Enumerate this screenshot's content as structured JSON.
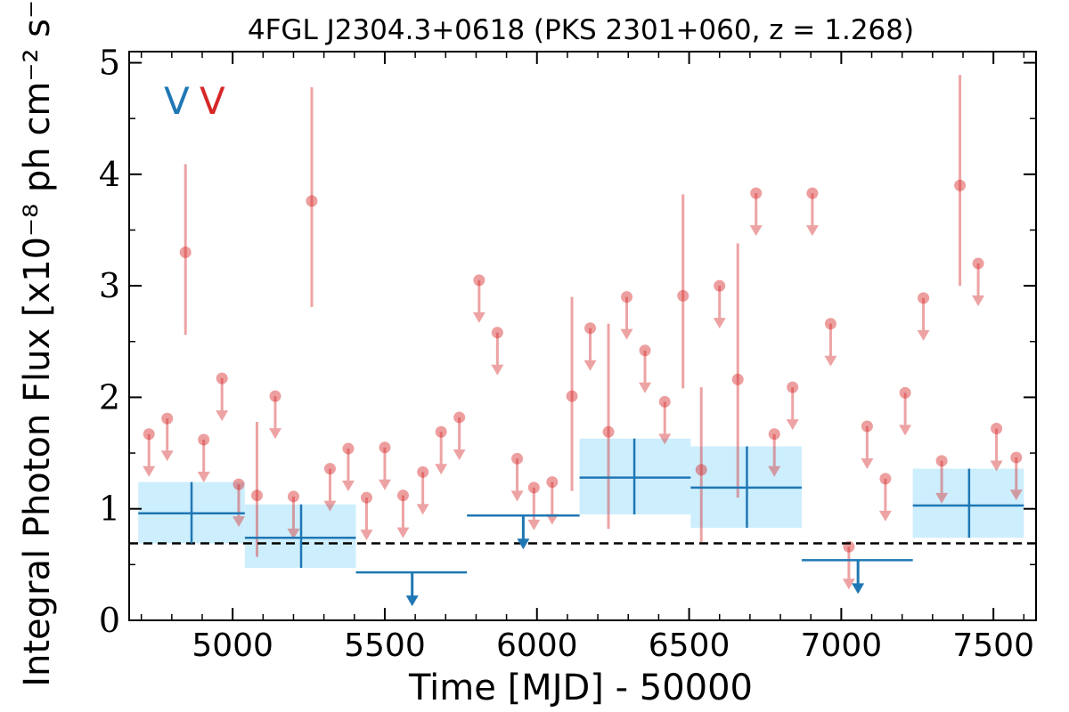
{
  "chart_data": {
    "type": "scatter",
    "title": "4FGL J2304.3+0618 (PKS 2301+060, z = 1.268)",
    "xlabel": "Time [MJD] - 50000",
    "ylabel": "Integral Photon Flux [x10⁻⁸ ph cm⁻² s⁻¹]",
    "xlim": [
      4660,
      7640
    ],
    "ylim": [
      0,
      5.1
    ],
    "x_ticks": [
      "5000",
      "5500",
      "6000",
      "6500",
      "7000",
      "7500"
    ],
    "x_tick_values": [
      5000,
      5500,
      6000,
      6500,
      7000,
      7500
    ],
    "y_ticks": [
      "0",
      "1",
      "2",
      "3",
      "4",
      "5"
    ],
    "y_tick_values": [
      0,
      1,
      2,
      3,
      4,
      5
    ],
    "grid": false,
    "legend_markers": [
      "V",
      "V"
    ],
    "colors": {
      "long_bins": "#1f77b4",
      "short_bins": "#d62728",
      "band_fill": "#cdeefd",
      "baseline": "#000000"
    },
    "baseline": 0.69,
    "series": [
      {
        "color": "#1f77b4",
        "bins": [
          {
            "x": 4865,
            "x_start": 4690,
            "x_end": 5040,
            "y": 0.96,
            "y_low": 0.69,
            "y_high": 1.24,
            "upper_limit": false
          },
          {
            "x": 5225,
            "x_start": 5040,
            "x_end": 5405,
            "y": 0.74,
            "y_low": 0.47,
            "y_high": 1.04,
            "upper_limit": false
          },
          {
            "x": 5590,
            "x_start": 5405,
            "x_end": 5770,
            "y": 0.43,
            "upper_limit": true
          },
          {
            "x": 5955,
            "x_start": 5770,
            "x_end": 6140,
            "y": 0.94,
            "upper_limit": true
          },
          {
            "x": 6320,
            "x_start": 6140,
            "x_end": 6505,
            "y": 1.28,
            "y_low": 0.95,
            "y_high": 1.63,
            "upper_limit": false
          },
          {
            "x": 6690,
            "x_start": 6505,
            "x_end": 6870,
            "y": 1.19,
            "y_low": 0.83,
            "y_high": 1.56,
            "upper_limit": false
          },
          {
            "x": 7055,
            "x_start": 6870,
            "x_end": 7235,
            "y": 0.54,
            "upper_limit": true
          },
          {
            "x": 7420,
            "x_start": 7235,
            "x_end": 7600,
            "y": 1.03,
            "y_low": 0.74,
            "y_high": 1.36,
            "upper_limit": false
          }
        ]
      },
      {
        "color": "#d62728",
        "points": [
          {
            "x": 4725,
            "y": 1.67,
            "upper_limit": true
          },
          {
            "x": 4785,
            "y": 1.81,
            "upper_limit": true
          },
          {
            "x": 4845,
            "y": 3.3,
            "y_low": 2.56,
            "y_high": 4.09,
            "upper_limit": false
          },
          {
            "x": 4905,
            "y": 1.62,
            "upper_limit": true
          },
          {
            "x": 4965,
            "y": 2.17,
            "upper_limit": true
          },
          {
            "x": 5020,
            "y": 1.22,
            "upper_limit": true
          },
          {
            "x": 5080,
            "y": 1.12,
            "y_low": 0.57,
            "y_high": 1.78,
            "upper_limit": false
          },
          {
            "x": 5140,
            "y": 2.01,
            "upper_limit": true
          },
          {
            "x": 5200,
            "y": 1.11,
            "upper_limit": true
          },
          {
            "x": 5260,
            "y": 3.76,
            "y_low": 2.81,
            "y_high": 4.78,
            "upper_limit": false
          },
          {
            "x": 5320,
            "y": 1.36,
            "upper_limit": true
          },
          {
            "x": 5380,
            "y": 1.54,
            "upper_limit": true
          },
          {
            "x": 5440,
            "y": 1.1,
            "upper_limit": true
          },
          {
            "x": 5500,
            "y": 1.55,
            "upper_limit": true
          },
          {
            "x": 5560,
            "y": 1.12,
            "upper_limit": true
          },
          {
            "x": 5625,
            "y": 1.33,
            "upper_limit": true
          },
          {
            "x": 5685,
            "y": 1.69,
            "upper_limit": true
          },
          {
            "x": 5745,
            "y": 1.82,
            "upper_limit": true
          },
          {
            "x": 5810,
            "y": 3.05,
            "upper_limit": true
          },
          {
            "x": 5870,
            "y": 2.58,
            "upper_limit": true
          },
          {
            "x": 5935,
            "y": 1.45,
            "upper_limit": true
          },
          {
            "x": 5990,
            "y": 1.19,
            "upper_limit": true
          },
          {
            "x": 6050,
            "y": 1.24,
            "upper_limit": true
          },
          {
            "x": 6115,
            "y": 2.01,
            "y_low": 1.16,
            "y_high": 2.9,
            "upper_limit": false
          },
          {
            "x": 6175,
            "y": 2.62,
            "upper_limit": true
          },
          {
            "x": 6235,
            "y": 1.69,
            "y_low": 0.82,
            "y_high": 2.66,
            "upper_limit": false
          },
          {
            "x": 6295,
            "y": 2.9,
            "upper_limit": true
          },
          {
            "x": 6355,
            "y": 2.42,
            "upper_limit": true
          },
          {
            "x": 6420,
            "y": 1.96,
            "upper_limit": true
          },
          {
            "x": 6480,
            "y": 2.91,
            "y_low": 2.08,
            "y_high": 3.82,
            "upper_limit": false
          },
          {
            "x": 6540,
            "y": 1.35,
            "y_low": 0.7,
            "y_high": 2.09,
            "upper_limit": false
          },
          {
            "x": 6600,
            "y": 3.0,
            "upper_limit": true
          },
          {
            "x": 6660,
            "y": 2.16,
            "y_low": 1.1,
            "y_high": 3.38,
            "upper_limit": false
          },
          {
            "x": 6720,
            "y": 3.83,
            "upper_limit": true
          },
          {
            "x": 6780,
            "y": 1.67,
            "upper_limit": true
          },
          {
            "x": 6840,
            "y": 2.09,
            "upper_limit": true
          },
          {
            "x": 6905,
            "y": 3.83,
            "upper_limit": true
          },
          {
            "x": 6965,
            "y": 2.66,
            "upper_limit": true
          },
          {
            "x": 7025,
            "y": 0.66,
            "upper_limit": true
          },
          {
            "x": 7085,
            "y": 1.74,
            "upper_limit": true
          },
          {
            "x": 7145,
            "y": 1.27,
            "upper_limit": true
          },
          {
            "x": 7210,
            "y": 2.04,
            "upper_limit": true
          },
          {
            "x": 7270,
            "y": 2.89,
            "upper_limit": true
          },
          {
            "x": 7330,
            "y": 1.43,
            "upper_limit": true
          },
          {
            "x": 7390,
            "y": 3.9,
            "y_low": 3.0,
            "y_high": 4.89,
            "upper_limit": false
          },
          {
            "x": 7450,
            "y": 3.2,
            "upper_limit": true
          },
          {
            "x": 7510,
            "y": 1.72,
            "upper_limit": true
          },
          {
            "x": 7575,
            "y": 1.46,
            "upper_limit": true
          }
        ]
      }
    ]
  }
}
